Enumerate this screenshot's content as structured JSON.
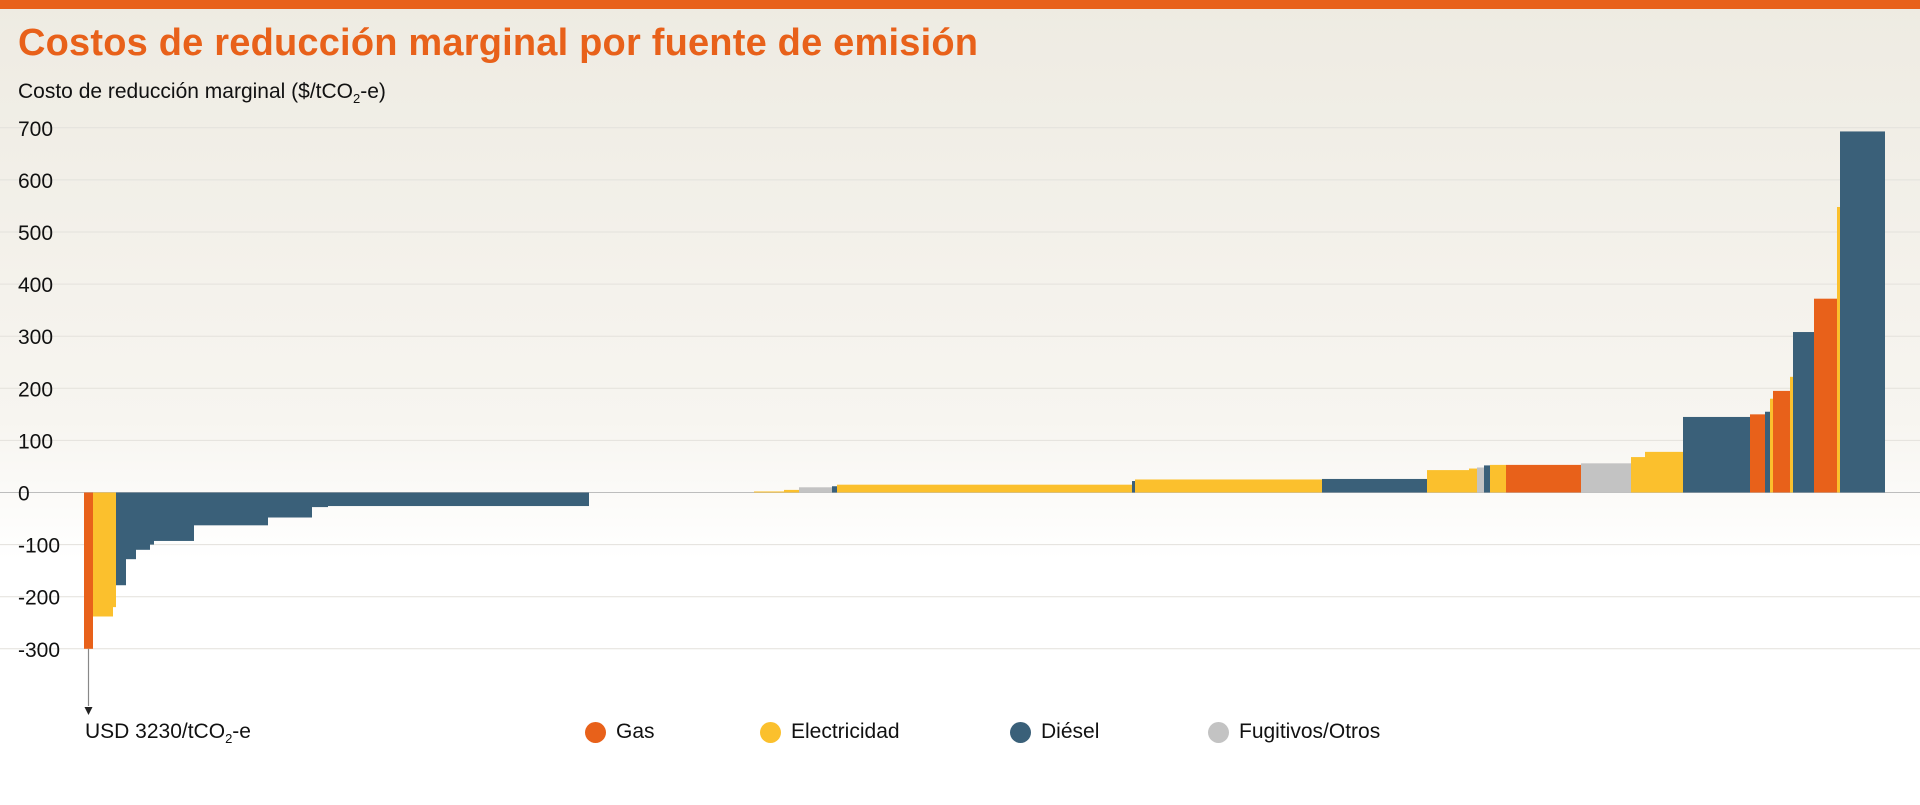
{
  "title": "Costos de reducción marginal por fuente de emisión",
  "colors": {
    "accent": "#e8611a",
    "Gas": "#e8611a",
    "Electricidad": "#fbc02d",
    "Diésel": "#3a6079",
    "Fugitivos/Otros": "#c3c3c3"
  },
  "ylabel": {
    "prefix": "Costo de reducción marginal ($/tCO",
    "sub": "2",
    "suffix": "-e)"
  },
  "outlier_label": {
    "prefix": "USD 3230/tCO",
    "sub": "2",
    "suffix": "-e"
  },
  "chart_data": {
    "type": "bar",
    "variable_width": true,
    "ylim": [
      -300,
      700
    ],
    "yticks": [
      700,
      600,
      500,
      400,
      300,
      200,
      100,
      0,
      -100,
      -200,
      -300
    ],
    "grid": true,
    "legend": [
      "Gas",
      "Electricidad",
      "Diésel",
      "Fugitivos/Otros"
    ],
    "legend_position": "bottom",
    "outlier": {
      "category": "Gas",
      "value": -3230
    },
    "bars": [
      {
        "s": "Gas",
        "x0": 0,
        "w": 9,
        "v": -300
      },
      {
        "s": "Electricidad",
        "x0": 9,
        "w": 20,
        "v": -238
      },
      {
        "s": "Electricidad",
        "x0": 29,
        "w": 3,
        "v": -220
      },
      {
        "s": "Diésel",
        "x0": 32,
        "w": 10,
        "v": -178
      },
      {
        "s": "Diésel",
        "x0": 42,
        "w": 10,
        "v": -128
      },
      {
        "s": "Diésel",
        "x0": 52,
        "w": 14,
        "v": -110
      },
      {
        "s": "Diésel",
        "x0": 66,
        "w": 4,
        "v": -100
      },
      {
        "s": "Diésel",
        "x0": 70,
        "w": 40,
        "v": -93
      },
      {
        "s": "Diésel",
        "x0": 110,
        "w": 74,
        "v": -63
      },
      {
        "s": "Diésel",
        "x0": 184,
        "w": 44,
        "v": -48
      },
      {
        "s": "Diésel",
        "x0": 228,
        "w": 16,
        "v": -28
      },
      {
        "s": "Diésel",
        "x0": 244,
        "w": 261,
        "v": -26
      },
      {
        "s": "Electricidad",
        "x0": 670,
        "w": 30,
        "v": 2
      },
      {
        "s": "Electricidad",
        "x0": 700,
        "w": 15,
        "v": 5
      },
      {
        "s": "Fugitivos/Otros",
        "x0": 715,
        "w": 33,
        "v": 10
      },
      {
        "s": "Diésel",
        "x0": 748,
        "w": 5,
        "v": 12
      },
      {
        "s": "Electricidad",
        "x0": 753,
        "w": 295,
        "v": 15
      },
      {
        "s": "Diésel",
        "x0": 1048,
        "w": 3,
        "v": 22
      },
      {
        "s": "Electricidad",
        "x0": 1051,
        "w": 187,
        "v": 25
      },
      {
        "s": "Diésel",
        "x0": 1238,
        "w": 105,
        "v": 26
      },
      {
        "s": "Electricidad",
        "x0": 1343,
        "w": 42,
        "v": 43
      },
      {
        "s": "Electricidad",
        "x0": 1385,
        "w": 8,
        "v": 46
      },
      {
        "s": "Fugitivos/Otros",
        "x0": 1393,
        "w": 7,
        "v": 48
      },
      {
        "s": "Diésel",
        "x0": 1400,
        "w": 6,
        "v": 52
      },
      {
        "s": "Electricidad",
        "x0": 1406,
        "w": 16,
        "v": 53
      },
      {
        "s": "Gas",
        "x0": 1422,
        "w": 75,
        "v": 53
      },
      {
        "s": "Fugitivos/Otros",
        "x0": 1497,
        "w": 50,
        "v": 56
      },
      {
        "s": "Electricidad",
        "x0": 1547,
        "w": 14,
        "v": 68
      },
      {
        "s": "Electricidad",
        "x0": 1561,
        "w": 38,
        "v": 78
      },
      {
        "s": "Diésel",
        "x0": 1599,
        "w": 67,
        "v": 145
      },
      {
        "s": "Gas",
        "x0": 1666,
        "w": 15,
        "v": 150
      },
      {
        "s": "Diésel",
        "x0": 1681,
        "w": 5,
        "v": 155
      },
      {
        "s": "Electricidad",
        "x0": 1686,
        "w": 3,
        "v": 180
      },
      {
        "s": "Gas",
        "x0": 1689,
        "w": 17,
        "v": 195
      },
      {
        "s": "Electricidad",
        "x0": 1706,
        "w": 3,
        "v": 222
      },
      {
        "s": "Diésel",
        "x0": 1709,
        "w": 21,
        "v": 308
      },
      {
        "s": "Gas",
        "x0": 1730,
        "w": 23,
        "v": 372
      },
      {
        "s": "Electricidad",
        "x0": 1753,
        "w": 3,
        "v": 548
      },
      {
        "s": "Diésel",
        "x0": 1756,
        "w": 45,
        "v": 693
      }
    ]
  }
}
